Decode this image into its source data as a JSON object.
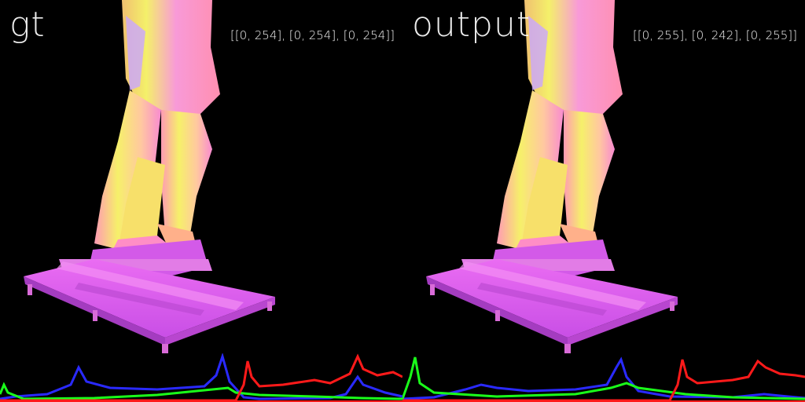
{
  "panels": [
    {
      "title": "gt",
      "range_label": "[[0, 254], [0, 254], [0, 254]]"
    },
    {
      "title": "output",
      "range_label": "[[0, 255], [0, 242], [0, 255]]"
    }
  ],
  "colors": {
    "background": "#000000",
    "statue_pink": "#e86cf0",
    "statue_yellow": "#f4f06a",
    "statue_lavender": "#c9a6ff",
    "hist_red": "#ff1a1a",
    "hist_green": "#1aff1a",
    "hist_blue": "#2a2aff"
  }
}
